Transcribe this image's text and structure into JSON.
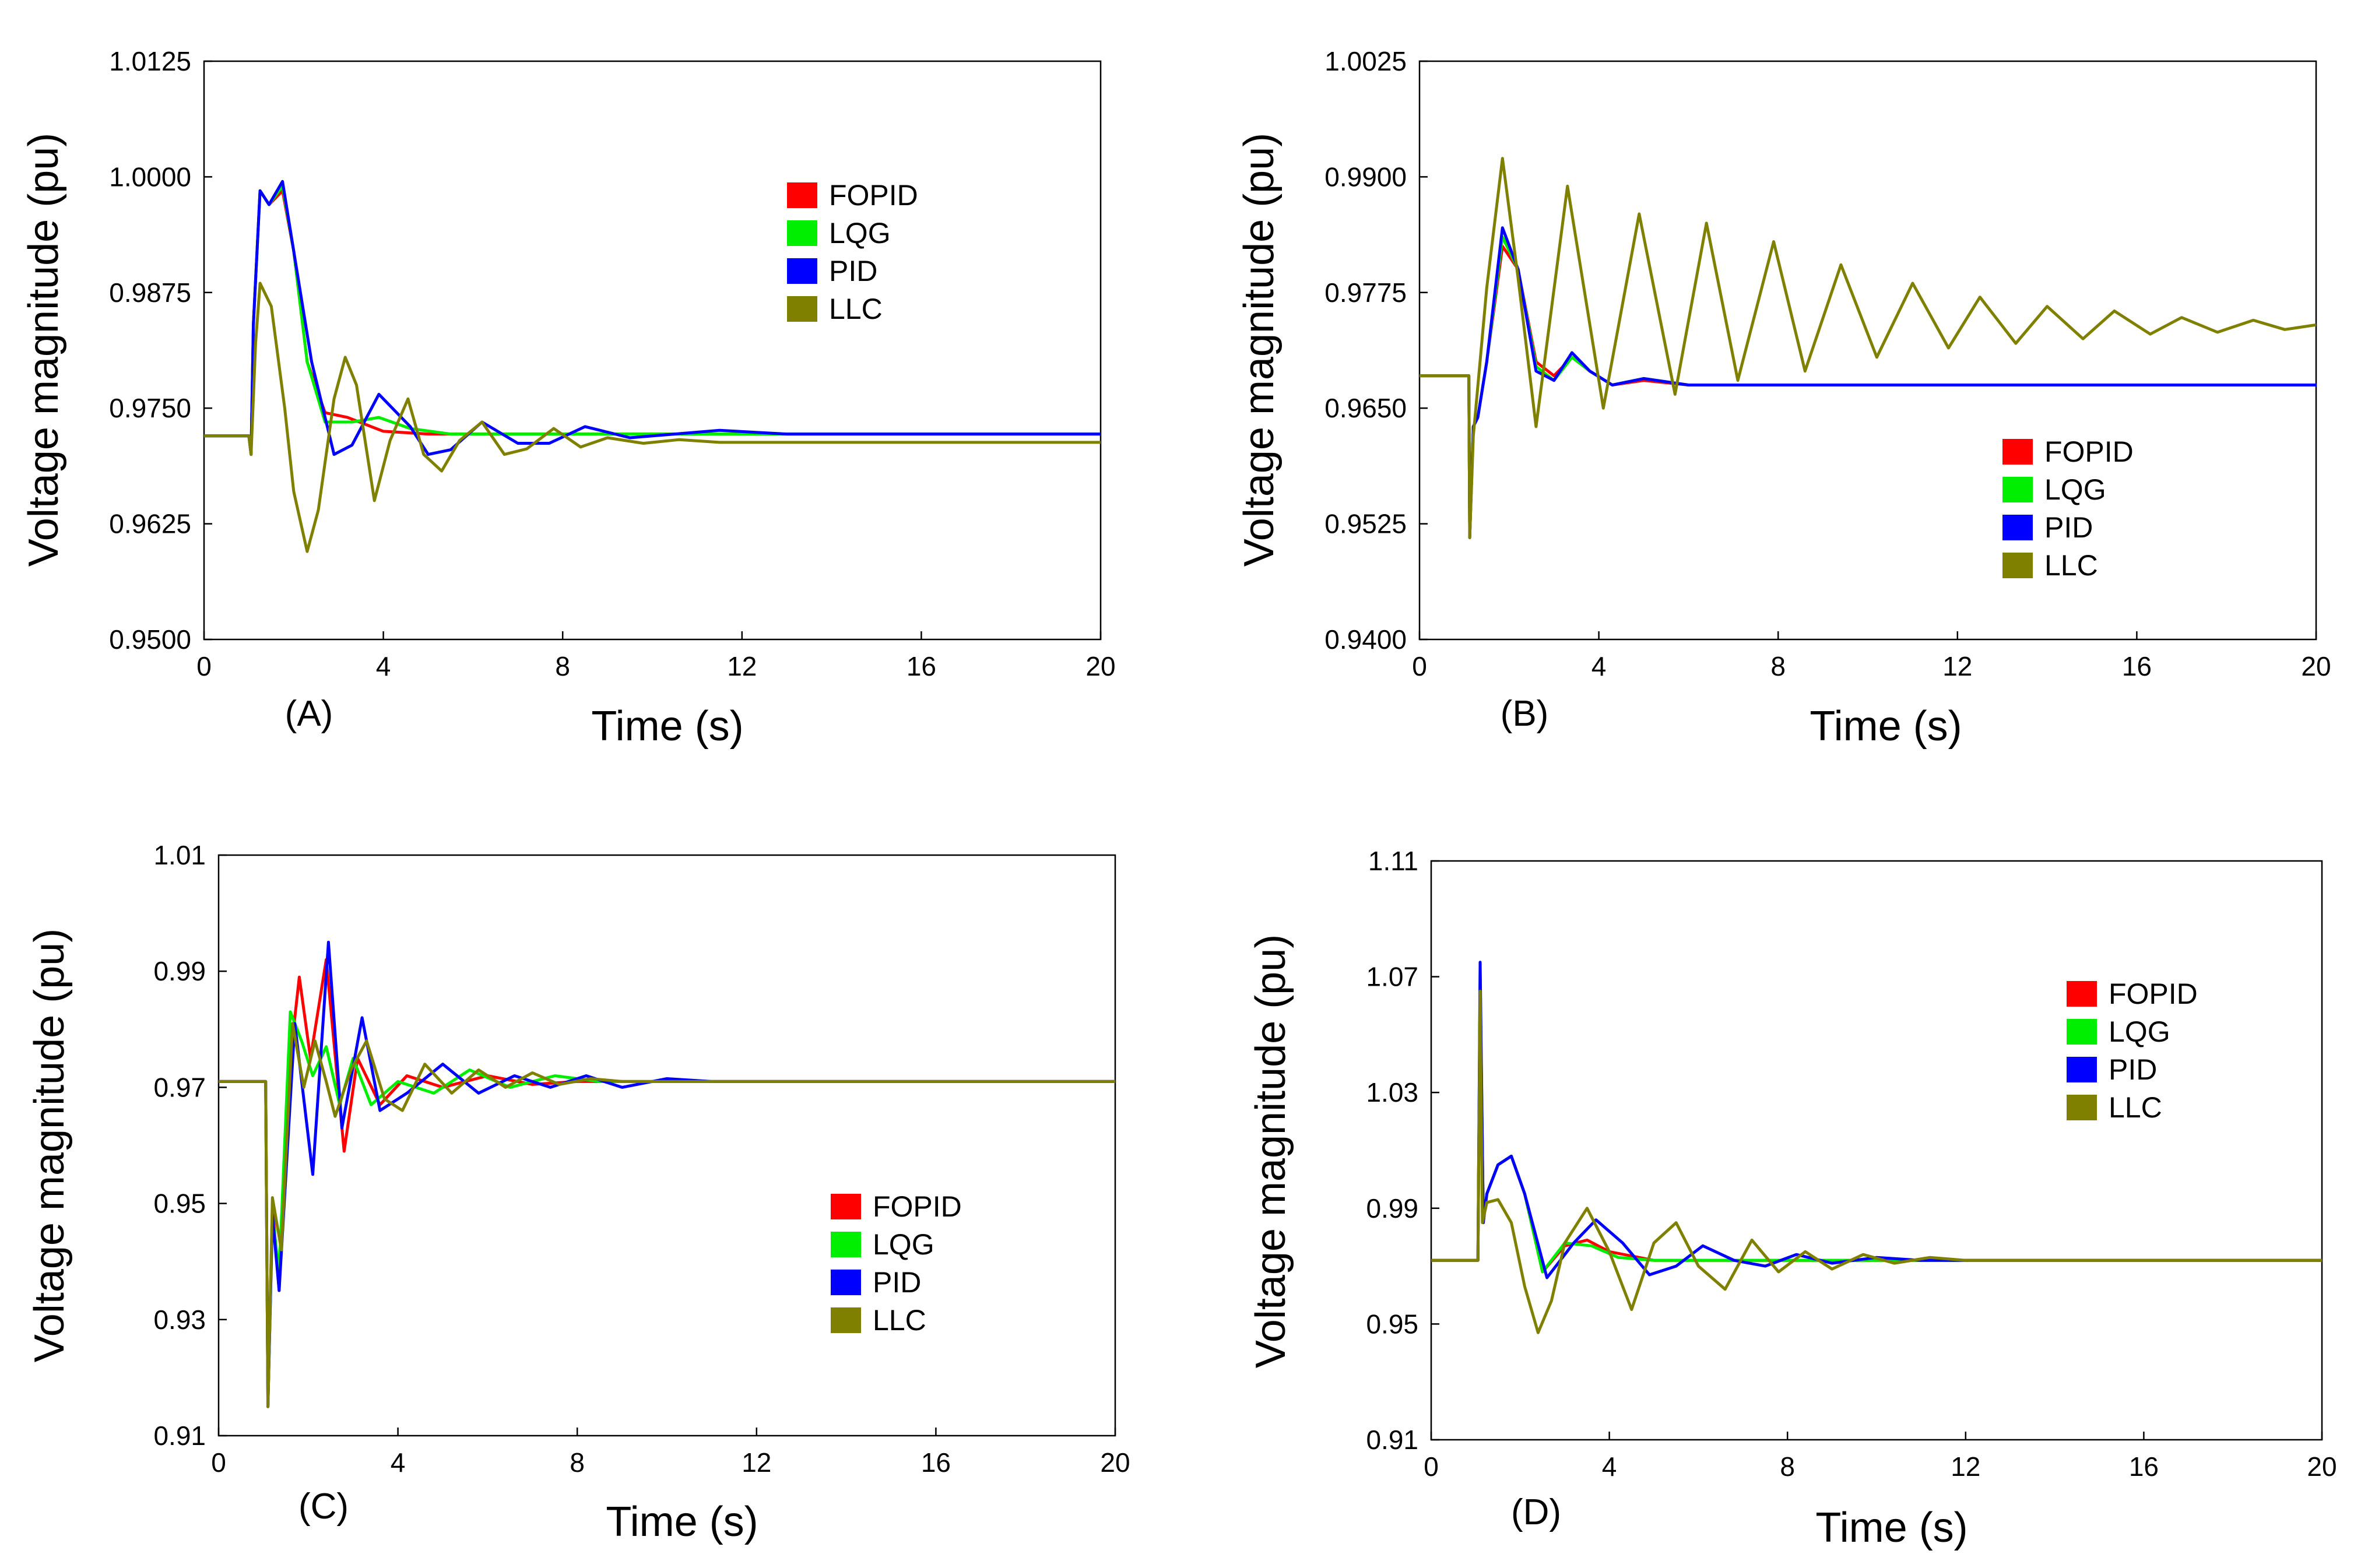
{
  "chart_data": [
    {
      "type": "line",
      "panel_label": "(A)",
      "xlabel": "Time (s)",
      "ylabel": "Voltage magnitude (pu)",
      "xlim": [
        0,
        20
      ],
      "ylim": [
        0.95,
        1.0125
      ],
      "xticks": [
        "0",
        "4",
        "8",
        "12",
        "16",
        "20"
      ],
      "yticks": [
        "0.9500",
        "0.9625",
        "0.9750",
        "0.9875",
        "1.0000",
        "1.0125"
      ],
      "legend_position": "upper-right",
      "series": [
        {
          "name": "FOPID",
          "color": "#ff0000",
          "x": [
            0,
            1,
            1.05,
            1.1,
            1.25,
            1.45,
            1.75,
            2.0,
            2.3,
            2.7,
            3.2,
            4.0,
            5.0,
            20
          ],
          "y": [
            0.972,
            0.972,
            0.97,
            0.984,
            0.9985,
            0.997,
            0.9985,
            0.992,
            0.98,
            0.9745,
            0.974,
            0.9725,
            0.9722,
            0.9722
          ]
        },
        {
          "name": "LQG",
          "color": "#00ee00",
          "x": [
            0,
            1,
            1.05,
            1.1,
            1.25,
            1.45,
            1.75,
            2.0,
            2.3,
            2.7,
            3.3,
            3.9,
            4.6,
            5.5,
            7.0,
            20
          ],
          "y": [
            0.972,
            0.972,
            0.97,
            0.984,
            0.9985,
            0.997,
            0.999,
            0.992,
            0.98,
            0.9735,
            0.9735,
            0.974,
            0.9728,
            0.9722,
            0.9722,
            0.9722
          ]
        },
        {
          "name": "PID",
          "color": "#0000ff",
          "x": [
            0,
            1,
            1.05,
            1.1,
            1.25,
            1.45,
            1.75,
            2.0,
            2.4,
            2.9,
            3.3,
            3.9,
            4.6,
            5.0,
            5.5,
            6.2,
            7.0,
            7.7,
            8.5,
            9.5,
            10.5,
            11.5,
            13,
            20
          ],
          "y": [
            0.972,
            0.972,
            0.97,
            0.984,
            0.9985,
            0.997,
            0.9995,
            0.992,
            0.98,
            0.97,
            0.971,
            0.9765,
            0.973,
            0.97,
            0.9705,
            0.9735,
            0.9712,
            0.9712,
            0.973,
            0.9718,
            0.9722,
            0.9726,
            0.9722,
            0.9722
          ]
        },
        {
          "name": "LLC",
          "color": "#808000",
          "x": [
            0,
            1,
            1.05,
            1.15,
            1.25,
            1.5,
            1.8,
            2.0,
            2.3,
            2.55,
            2.9,
            3.15,
            3.4,
            3.8,
            4.15,
            4.55,
            4.9,
            5.3,
            5.7,
            6.2,
            6.7,
            7.2,
            7.8,
            8.4,
            9.0,
            9.8,
            10.6,
            11.5,
            20
          ],
          "y": [
            0.972,
            0.972,
            0.97,
            0.982,
            0.9885,
            0.986,
            0.975,
            0.966,
            0.9595,
            0.964,
            0.976,
            0.9805,
            0.9775,
            0.965,
            0.9715,
            0.976,
            0.97,
            0.9682,
            0.9715,
            0.9735,
            0.97,
            0.9706,
            0.9728,
            0.9708,
            0.9718,
            0.9712,
            0.9716,
            0.9713,
            0.9713
          ]
        }
      ]
    },
    {
      "type": "line",
      "panel_label": "(B)",
      "xlabel": "Time (s)",
      "ylabel": "Voltage magnitude (pu)",
      "xlim": [
        0,
        20
      ],
      "ylim": [
        0.94,
        1.0025
      ],
      "xticks": [
        "0",
        "4",
        "8",
        "12",
        "16",
        "20"
      ],
      "yticks": [
        "0.9400",
        "0.9525",
        "0.9650",
        "0.9775",
        "0.9900",
        "1.0025"
      ],
      "legend_position": "lower-right",
      "series": [
        {
          "name": "FOPID",
          "color": "#ff0000",
          "x": [
            0,
            1.1,
            1.12,
            1.2,
            1.3,
            1.5,
            1.85,
            2.2,
            2.6,
            3.0,
            3.4,
            3.8,
            4.3,
            5.0,
            6.0,
            20
          ],
          "y": [
            0.9685,
            0.9685,
            0.951,
            0.963,
            0.964,
            0.97,
            0.9825,
            0.98,
            0.97,
            0.9685,
            0.9705,
            0.969,
            0.9675,
            0.968,
            0.9675,
            0.9675
          ]
        },
        {
          "name": "LQG",
          "color": "#00ee00",
          "x": [
            0,
            1.1,
            1.12,
            1.2,
            1.3,
            1.5,
            1.85,
            2.2,
            2.6,
            3.0,
            3.4,
            3.8,
            4.3,
            5.0,
            6.0,
            20
          ],
          "y": [
            0.9685,
            0.9685,
            0.951,
            0.963,
            0.964,
            0.97,
            0.9835,
            0.98,
            0.9695,
            0.968,
            0.9705,
            0.969,
            0.9675,
            0.9682,
            0.9675,
            0.9675
          ]
        },
        {
          "name": "PID",
          "color": "#0000ff",
          "x": [
            0,
            1.1,
            1.12,
            1.2,
            1.3,
            1.5,
            1.85,
            2.2,
            2.6,
            3.0,
            3.4,
            3.8,
            4.3,
            5.0,
            6.0,
            20
          ],
          "y": [
            0.9685,
            0.9685,
            0.951,
            0.963,
            0.964,
            0.97,
            0.9845,
            0.98,
            0.969,
            0.968,
            0.971,
            0.969,
            0.9675,
            0.9682,
            0.9675,
            0.9675
          ]
        },
        {
          "name": "LLC",
          "color": "#808000",
          "x": [
            0,
            1.1,
            1.12,
            1.2,
            1.5,
            1.85,
            2.2,
            2.6,
            3.3,
            4.1,
            4.9,
            5.7,
            6.4,
            7.1,
            7.9,
            8.6,
            9.4,
            10.2,
            11.0,
            11.8,
            12.5,
            13.3,
            14.0,
            14.8,
            15.5,
            16.3,
            17.0,
            17.8,
            18.6,
            19.3,
            20.0
          ],
          "y": [
            0.9685,
            0.9685,
            0.951,
            0.962,
            0.978,
            0.992,
            0.979,
            0.963,
            0.989,
            0.965,
            0.986,
            0.9665,
            0.985,
            0.968,
            0.983,
            0.969,
            0.9805,
            0.9705,
            0.9785,
            0.9715,
            0.977,
            0.972,
            0.976,
            0.9725,
            0.9755,
            0.973,
            0.9748,
            0.9732,
            0.9745,
            0.9735,
            0.974
          ]
        }
      ]
    },
    {
      "type": "line",
      "panel_label": "(C)",
      "xlabel": "Time (s)",
      "ylabel": "Voltage magnitude (pu)",
      "xlim": [
        0,
        20
      ],
      "ylim": [
        0.91,
        1.01
      ],
      "xticks": [
        "0",
        "4",
        "8",
        "12",
        "16",
        "20"
      ],
      "yticks": [
        "0.91",
        "0.93",
        "0.95",
        "0.97",
        "0.99",
        "1.01"
      ],
      "legend_position": "lower-right",
      "series": [
        {
          "name": "FOPID",
          "color": "#ff0000",
          "x": [
            0,
            1.05,
            1.1,
            1.2,
            1.35,
            1.6,
            1.8,
            2.05,
            2.4,
            2.8,
            3.1,
            3.6,
            4.2,
            5.0,
            6.0,
            7.0,
            8.0,
            20
          ],
          "y": [
            0.971,
            0.971,
            0.915,
            0.95,
            0.935,
            0.975,
            0.989,
            0.975,
            0.992,
            0.959,
            0.975,
            0.967,
            0.972,
            0.97,
            0.972,
            0.9705,
            0.971,
            0.971
          ]
        },
        {
          "name": "LQG",
          "color": "#00ee00",
          "x": [
            0,
            1.05,
            1.1,
            1.2,
            1.35,
            1.6,
            1.85,
            2.1,
            2.4,
            2.7,
            3.0,
            3.4,
            4.0,
            4.8,
            5.6,
            6.5,
            7.5,
            8.5,
            20
          ],
          "y": [
            0.971,
            0.971,
            0.915,
            0.948,
            0.938,
            0.983,
            0.978,
            0.972,
            0.977,
            0.967,
            0.975,
            0.967,
            0.971,
            0.969,
            0.973,
            0.97,
            0.972,
            0.971,
            0.971
          ]
        },
        {
          "name": "PID",
          "color": "#0000ff",
          "x": [
            0,
            1.05,
            1.1,
            1.2,
            1.35,
            1.7,
            1.9,
            2.1,
            2.45,
            2.75,
            3.2,
            3.6,
            4.2,
            5.0,
            5.8,
            6.6,
            7.4,
            8.2,
            9.0,
            10.0,
            11.0,
            20
          ],
          "y": [
            0.971,
            0.971,
            0.915,
            0.948,
            0.935,
            0.981,
            0.968,
            0.955,
            0.995,
            0.963,
            0.982,
            0.966,
            0.969,
            0.974,
            0.969,
            0.972,
            0.97,
            0.972,
            0.97,
            0.9715,
            0.971,
            0.971
          ]
        },
        {
          "name": "LLC",
          "color": "#808000",
          "x": [
            0,
            1.05,
            1.1,
            1.2,
            1.4,
            1.65,
            1.9,
            2.15,
            2.4,
            2.6,
            2.95,
            3.3,
            3.7,
            4.1,
            4.6,
            5.2,
            5.8,
            6.4,
            7.0,
            7.6,
            8.3,
            9.0,
            20
          ],
          "y": [
            0.971,
            0.971,
            0.915,
            0.951,
            0.942,
            0.981,
            0.97,
            0.978,
            0.971,
            0.965,
            0.973,
            0.978,
            0.968,
            0.966,
            0.974,
            0.969,
            0.973,
            0.97,
            0.9725,
            0.9705,
            0.9715,
            0.971,
            0.971
          ]
        }
      ]
    },
    {
      "type": "line",
      "panel_label": "(D)",
      "xlabel": "Time (s)",
      "ylabel": "Voltage magnitude (pu)",
      "xlim": [
        0,
        20
      ],
      "ylim": [
        0.91,
        1.11
      ],
      "xticks": [
        "0",
        "4",
        "8",
        "12",
        "16",
        "20"
      ],
      "yticks": [
        "0.91",
        "0.95",
        "0.99",
        "1.03",
        "1.07",
        "1.11"
      ],
      "legend_position": "upper-right",
      "series": [
        {
          "name": "FOPID",
          "color": "#ff0000",
          "x": [
            0,
            1.05,
            1.1,
            1.17,
            1.25,
            1.5,
            1.8,
            2.1,
            2.5,
            3.0,
            3.5,
            4.0,
            5.0,
            6.0,
            20
          ],
          "y": [
            0.972,
            0.972,
            1.068,
            0.985,
            0.995,
            1.005,
            1.008,
            0.995,
            0.968,
            0.977,
            0.979,
            0.975,
            0.972,
            0.972,
            0.972
          ]
        },
        {
          "name": "LQG",
          "color": "#00ee00",
          "x": [
            0,
            1.05,
            1.1,
            1.17,
            1.25,
            1.5,
            1.8,
            2.1,
            2.5,
            3.0,
            3.6,
            4.2,
            5.0,
            6.0,
            20
          ],
          "y": [
            0.972,
            0.972,
            1.072,
            0.985,
            0.995,
            1.005,
            1.008,
            0.995,
            0.968,
            0.978,
            0.977,
            0.973,
            0.972,
            0.972,
            0.972
          ]
        },
        {
          "name": "PID",
          "color": "#0000ff",
          "x": [
            0,
            1.05,
            1.1,
            1.17,
            1.25,
            1.5,
            1.8,
            2.1,
            2.6,
            3.2,
            3.7,
            4.3,
            4.9,
            5.5,
            6.1,
            6.8,
            7.5,
            8.2,
            9.0,
            10,
            11,
            12,
            20
          ],
          "y": [
            0.972,
            0.972,
            1.075,
            0.985,
            0.995,
            1.005,
            1.008,
            0.995,
            0.966,
            0.978,
            0.986,
            0.978,
            0.967,
            0.97,
            0.977,
            0.972,
            0.97,
            0.974,
            0.971,
            0.973,
            0.972,
            0.972,
            0.972
          ]
        },
        {
          "name": "LLC",
          "color": "#808000",
          "x": [
            0,
            1.05,
            1.1,
            1.15,
            1.25,
            1.5,
            1.8,
            2.1,
            2.4,
            2.7,
            3.0,
            3.5,
            4.0,
            4.5,
            5.0,
            5.5,
            6.0,
            6.6,
            7.2,
            7.8,
            8.4,
            9.0,
            9.7,
            10.4,
            11.2,
            12.0,
            20
          ],
          "y": [
            0.972,
            0.972,
            1.065,
            0.985,
            0.992,
            0.993,
            0.985,
            0.963,
            0.947,
            0.958,
            0.978,
            0.99,
            0.975,
            0.955,
            0.978,
            0.985,
            0.97,
            0.962,
            0.979,
            0.968,
            0.975,
            0.969,
            0.974,
            0.971,
            0.973,
            0.972,
            0.972
          ]
        }
      ]
    }
  ]
}
